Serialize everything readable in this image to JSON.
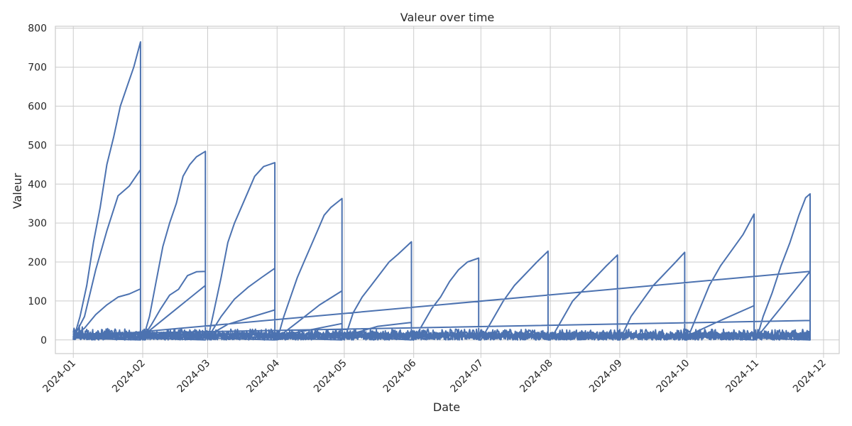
{
  "chart_data": {
    "type": "line",
    "title": "Valeur over time",
    "xlabel": "Date",
    "ylabel": "Valeur",
    "x_range": [
      "2023-12-24",
      "2024-12-08"
    ],
    "ylim": [
      -35,
      805
    ],
    "y_ticks": [
      0,
      100,
      200,
      300,
      400,
      500,
      600,
      700,
      800
    ],
    "x_ticks": [
      "2024-01",
      "2024-02",
      "2024-03",
      "2024-04",
      "2024-05",
      "2024-06",
      "2024-07",
      "2024-08",
      "2024-09",
      "2024-10",
      "2024-11",
      "2024-12"
    ],
    "x_tick_dates": [
      "2024-01-01",
      "2024-02-01",
      "2024-03-01",
      "2024-04-01",
      "2024-05-01",
      "2024-06-01",
      "2024-07-01",
      "2024-08-01",
      "2024-09-01",
      "2024-10-01",
      "2024-11-01",
      "2024-12-01"
    ],
    "grid": true,
    "colors": {
      "line": "#4c72b0",
      "grid": "#cccccc",
      "background": "#ffffff"
    },
    "series": [
      {
        "values": [
          [
            "2024-01-01",
            0
          ],
          [
            "2024-01-04",
            60
          ],
          [
            "2024-01-07",
            140
          ],
          [
            "2024-01-10",
            250
          ],
          [
            "2024-01-13",
            340
          ],
          [
            "2024-01-16",
            450
          ],
          [
            "2024-01-19",
            520
          ],
          [
            "2024-01-22",
            600
          ],
          [
            "2024-01-25",
            650
          ],
          [
            "2024-01-28",
            700
          ],
          [
            "2024-01-31",
            765
          ],
          [
            "2024-01-31",
            0
          ],
          [
            "2024-01-01",
            5
          ],
          [
            "2024-01-06",
            60
          ],
          [
            "2024-01-11",
            180
          ],
          [
            "2024-01-16",
            280
          ],
          [
            "2024-01-21",
            370
          ],
          [
            "2024-01-26",
            395
          ],
          [
            "2024-01-31",
            437
          ],
          [
            "2024-01-31",
            5
          ],
          [
            "2024-01-01",
            10
          ],
          [
            "2024-01-06",
            30
          ],
          [
            "2024-01-11",
            65
          ],
          [
            "2024-01-16",
            90
          ],
          [
            "2024-01-21",
            110
          ],
          [
            "2024-01-26",
            118
          ],
          [
            "2024-01-31",
            131
          ],
          [
            "2024-01-31",
            10
          ],
          [
            "2024-02-01",
            0
          ],
          [
            "2024-02-04",
            60
          ],
          [
            "2024-02-07",
            150
          ],
          [
            "2024-02-10",
            240
          ],
          [
            "2024-02-13",
            300
          ],
          [
            "2024-02-16",
            350
          ],
          [
            "2024-02-19",
            420
          ],
          [
            "2024-02-22",
            450
          ],
          [
            "2024-02-25",
            470
          ],
          [
            "2024-02-29",
            484
          ],
          [
            "2024-02-29",
            0
          ],
          [
            "2024-02-01",
            5
          ],
          [
            "2024-02-05",
            40
          ],
          [
            "2024-02-09",
            80
          ],
          [
            "2024-02-13",
            115
          ],
          [
            "2024-02-17",
            130
          ],
          [
            "2024-02-21",
            165
          ],
          [
            "2024-02-25",
            175
          ],
          [
            "2024-02-29",
            176
          ],
          [
            "2024-02-29",
            5
          ],
          [
            "2024-02-01",
            10
          ],
          [
            "2024-02-29",
            140
          ],
          [
            "2024-02-29",
            10
          ],
          [
            "2024-03-01",
            0
          ],
          [
            "2024-03-04",
            80
          ],
          [
            "2024-03-07",
            160
          ],
          [
            "2024-03-10",
            250
          ],
          [
            "2024-03-13",
            300
          ],
          [
            "2024-03-16",
            340
          ],
          [
            "2024-03-19",
            380
          ],
          [
            "2024-03-22",
            420
          ],
          [
            "2024-03-26",
            445
          ],
          [
            "2024-03-31",
            455
          ],
          [
            "2024-03-31",
            0
          ],
          [
            "2024-03-01",
            5
          ],
          [
            "2024-03-07",
            60
          ],
          [
            "2024-03-13",
            105
          ],
          [
            "2024-03-19",
            135
          ],
          [
            "2024-03-25",
            160
          ],
          [
            "2024-03-31",
            184
          ],
          [
            "2024-03-31",
            5
          ],
          [
            "2024-03-01",
            10
          ],
          [
            "2024-03-10",
            40
          ],
          [
            "2024-03-20",
            58
          ],
          [
            "2024-03-31",
            77
          ],
          [
            "2024-03-31",
            10
          ],
          [
            "2024-04-01",
            0
          ],
          [
            "2024-04-04",
            60
          ],
          [
            "2024-04-07",
            110
          ],
          [
            "2024-04-10",
            160
          ],
          [
            "2024-04-13",
            200
          ],
          [
            "2024-04-16",
            240
          ],
          [
            "2024-04-19",
            280
          ],
          [
            "2024-04-22",
            320
          ],
          [
            "2024-04-25",
            340
          ],
          [
            "2024-04-30",
            363
          ],
          [
            "2024-04-30",
            0
          ],
          [
            "2024-04-01",
            5
          ],
          [
            "2024-04-10",
            45
          ],
          [
            "2024-04-20",
            90
          ],
          [
            "2024-04-30",
            126
          ],
          [
            "2024-04-30",
            5
          ],
          [
            "2024-04-01",
            10
          ],
          [
            "2024-04-15",
            25
          ],
          [
            "2024-04-30",
            42
          ],
          [
            "2024-04-30",
            10
          ],
          [
            "2024-05-01",
            0
          ],
          [
            "2024-05-05",
            70
          ],
          [
            "2024-05-09",
            110
          ],
          [
            "2024-05-13",
            140
          ],
          [
            "2024-05-17",
            170
          ],
          [
            "2024-05-21",
            200
          ],
          [
            "2024-05-25",
            220
          ],
          [
            "2024-05-31",
            252
          ],
          [
            "2024-05-31",
            0
          ],
          [
            "2024-05-01",
            10
          ],
          [
            "2024-05-16",
            35
          ],
          [
            "2024-05-31",
            45
          ],
          [
            "2024-05-31",
            10
          ],
          [
            "2024-06-01",
            0
          ],
          [
            "2024-06-05",
            40
          ],
          [
            "2024-06-09",
            80
          ],
          [
            "2024-06-13",
            110
          ],
          [
            "2024-06-17",
            150
          ],
          [
            "2024-06-21",
            180
          ],
          [
            "2024-06-25",
            200
          ],
          [
            "2024-06-30",
            210
          ],
          [
            "2024-06-30",
            0
          ],
          [
            "2024-07-01",
            0
          ],
          [
            "2024-07-06",
            50
          ],
          [
            "2024-07-11",
            100
          ],
          [
            "2024-07-16",
            140
          ],
          [
            "2024-07-21",
            170
          ],
          [
            "2024-07-26",
            200
          ],
          [
            "2024-07-31",
            228
          ],
          [
            "2024-07-31",
            0
          ],
          [
            "2024-08-01",
            0
          ],
          [
            "2024-08-06",
            50
          ],
          [
            "2024-08-11",
            100
          ],
          [
            "2024-08-16",
            130
          ],
          [
            "2024-08-21",
            160
          ],
          [
            "2024-08-26",
            190
          ],
          [
            "2024-08-31",
            218
          ],
          [
            "2024-08-31",
            0
          ],
          [
            "2024-09-01",
            0
          ],
          [
            "2024-09-06",
            60
          ],
          [
            "2024-09-11",
            100
          ],
          [
            "2024-09-16",
            140
          ],
          [
            "2024-09-21",
            170
          ],
          [
            "2024-09-26",
            200
          ],
          [
            "2024-09-30",
            225
          ],
          [
            "2024-09-30",
            0
          ],
          [
            "2024-10-01",
            0
          ],
          [
            "2024-10-06",
            70
          ],
          [
            "2024-10-11",
            140
          ],
          [
            "2024-10-16",
            190
          ],
          [
            "2024-10-21",
            230
          ],
          [
            "2024-10-26",
            270
          ],
          [
            "2024-10-31",
            323
          ],
          [
            "2024-10-31",
            0
          ],
          [
            "2024-10-01",
            10
          ],
          [
            "2024-10-16",
            50
          ],
          [
            "2024-10-31",
            88
          ],
          [
            "2024-10-31",
            10
          ],
          [
            "2024-11-01",
            0
          ],
          [
            "2024-11-04",
            60
          ],
          [
            "2024-11-08",
            120
          ],
          [
            "2024-11-12",
            190
          ],
          [
            "2024-11-16",
            250
          ],
          [
            "2024-11-20",
            320
          ],
          [
            "2024-11-23",
            365
          ],
          [
            "2024-11-25",
            375
          ],
          [
            "2024-11-25",
            0
          ],
          [
            "2024-11-01",
            5
          ],
          [
            "2024-11-13",
            90
          ],
          [
            "2024-11-25",
            176
          ],
          [
            "2024-01-01",
            5
          ],
          [
            "2024-11-25",
            176
          ],
          [
            "2024-11-25",
            10
          ],
          [
            "2024-01-01",
            15
          ],
          [
            "2024-11-25",
            50
          ]
        ]
      }
    ]
  }
}
